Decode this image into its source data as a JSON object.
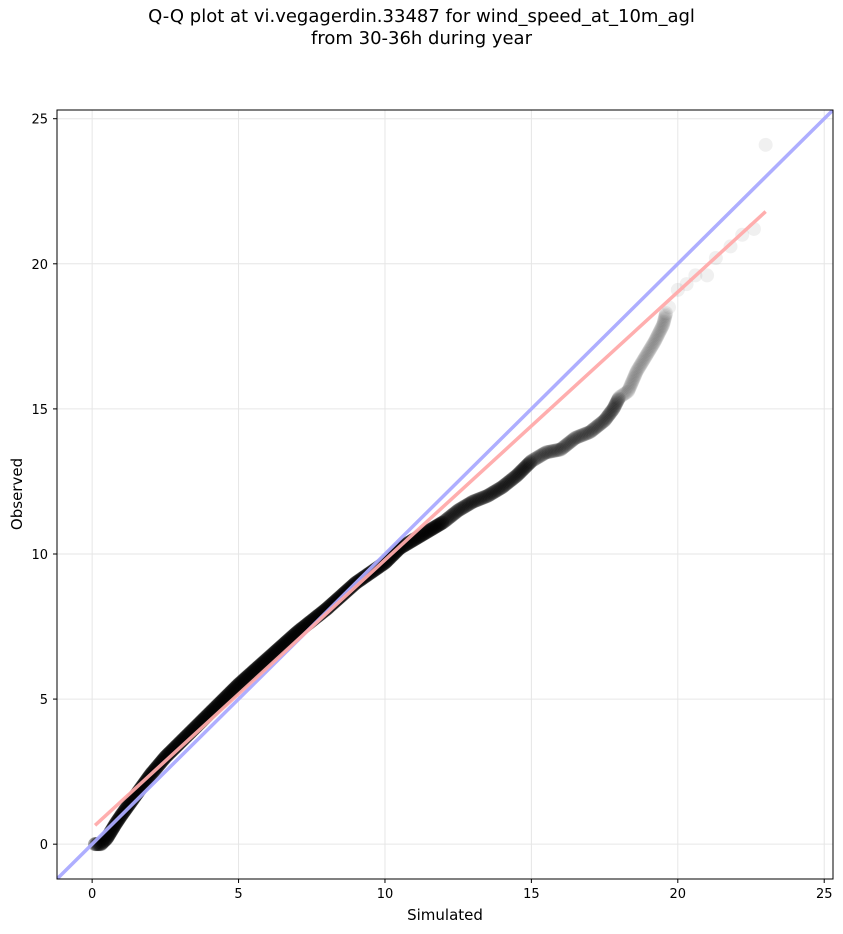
{
  "chart_data": {
    "type": "scatter",
    "title_line1": "Q-Q plot at vi.vegagerdin.33487 for wind_speed_at_10m_agl",
    "title_line2": "from 30-36h during year",
    "xlabel": "Simulated",
    "ylabel": "Observed",
    "xlim": [
      -1.2,
      25.3
    ],
    "ylim": [
      -1.2,
      25.3
    ],
    "xticks": [
      0,
      5,
      10,
      15,
      20,
      25
    ],
    "yticks": [
      0,
      5,
      10,
      15,
      20,
      25
    ],
    "grid": true,
    "colors": {
      "points": "#000000",
      "identity_line": "#aaaaff",
      "fit_line": "#ffaaaa",
      "grid": "#e6e6e6"
    },
    "quantile_curve": {
      "x": [
        0.1,
        0.3,
        0.5,
        0.8,
        1.0,
        1.5,
        2.0,
        2.5,
        3.0,
        4.0,
        5.0,
        6.0,
        7.0,
        8.0,
        9.0,
        10.0,
        10.5,
        11.0,
        11.5,
        12.0,
        12.5,
        13.0,
        13.5,
        14.0,
        14.5,
        15.0,
        15.5,
        16.0,
        16.5,
        17.0,
        17.5,
        17.8,
        18.0,
        18.3,
        18.6,
        18.9,
        19.2,
        19.5,
        19.6
      ],
      "y": [
        0.0,
        0.0,
        0.2,
        0.7,
        1.0,
        1.7,
        2.4,
        3.0,
        3.5,
        4.5,
        5.5,
        6.4,
        7.3,
        8.1,
        9.0,
        9.7,
        10.2,
        10.5,
        10.8,
        11.1,
        11.5,
        11.8,
        12.0,
        12.3,
        12.7,
        13.2,
        13.5,
        13.6,
        14.0,
        14.2,
        14.6,
        15.0,
        15.4,
        15.6,
        16.3,
        16.8,
        17.3,
        17.9,
        18.3
      ]
    },
    "outliers": {
      "x": [
        19.7,
        20.0,
        20.3,
        20.6,
        21.0,
        21.3,
        21.8,
        22.2,
        22.6,
        23.0
      ],
      "y": [
        18.5,
        19.1,
        19.3,
        19.6,
        19.6,
        20.2,
        20.6,
        21.0,
        21.2,
        24.1
      ]
    },
    "identity_line": {
      "x": [
        -1.2,
        25.3
      ],
      "y": [
        -1.2,
        25.3
      ]
    },
    "fit_line": {
      "x": [
        0.1,
        23.0
      ],
      "y": [
        0.65,
        21.8
      ]
    }
  }
}
